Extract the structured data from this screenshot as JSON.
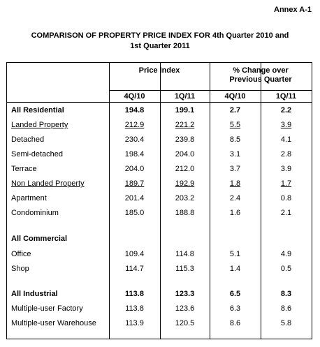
{
  "annex": "Annex A-1",
  "title_line1": "COMPARISON OF PROPERTY PRICE INDEX FOR 4th Quarter 2010 and",
  "title_line2": "1st Quarter 2011",
  "headers": {
    "price_index": "Price Index",
    "pct_change_line1": "% Change over",
    "pct_change_line2": "Previous Quarter",
    "q4_10": "4Q/10",
    "q1_11": "1Q/11"
  },
  "rows": [
    {
      "label": "All Residential",
      "pi_4q10": "194.8",
      "pi_1q11": "199.1",
      "pc_4q10": "2.7",
      "pc_1q11": "2.2"
    },
    {
      "label": "Landed Property",
      "pi_4q10": "212.9",
      "pi_1q11": "221.2",
      "pc_4q10": "5.5",
      "pc_1q11": "3.9"
    },
    {
      "label": "Detached",
      "pi_4q10": "230.4",
      "pi_1q11": "239.8",
      "pc_4q10": "8.5",
      "pc_1q11": "4.1"
    },
    {
      "label": "Semi-detached",
      "pi_4q10": "198.4",
      "pi_1q11": "204.0",
      "pc_4q10": "3.1",
      "pc_1q11": "2.8"
    },
    {
      "label": "Terrace",
      "pi_4q10": "204.0",
      "pi_1q11": "212.0",
      "pc_4q10": "3.7",
      "pc_1q11": "3.9"
    },
    {
      "label": "Non Landed Property",
      "pi_4q10": "189.7",
      "pi_1q11": "192.9",
      "pc_4q10": "1.8",
      "pc_1q11": "1.7"
    },
    {
      "label": "Apartment",
      "pi_4q10": "201.4",
      "pi_1q11": "203.2",
      "pc_4q10": "2.4",
      "pc_1q11": "0.8"
    },
    {
      "label": "Condominium",
      "pi_4q10": "185.0",
      "pi_1q11": "188.8",
      "pc_4q10": "1.6",
      "pc_1q11": "2.1"
    },
    {
      "label": "All Commercial",
      "pi_4q10": "",
      "pi_1q11": "",
      "pc_4q10": "",
      "pc_1q11": ""
    },
    {
      "label": "Office",
      "pi_4q10": "109.4",
      "pi_1q11": "114.8",
      "pc_4q10": "5.1",
      "pc_1q11": "4.9"
    },
    {
      "label": "Shop",
      "pi_4q10": "114.7",
      "pi_1q11": "115.3",
      "pc_4q10": "1.4",
      "pc_1q11": "0.5"
    },
    {
      "label": "All Industrial",
      "pi_4q10": "113.8",
      "pi_1q11": "123.3",
      "pc_4q10": "6.5",
      "pc_1q11": "8.3"
    },
    {
      "label": "Multiple-user Factory",
      "pi_4q10": "113.8",
      "pi_1q11": "123.6",
      "pc_4q10": "6.3",
      "pc_1q11": "8.6"
    },
    {
      "label": "Multiple-user Warehouse",
      "pi_4q10": "113.9",
      "pi_1q11": "120.5",
      "pc_4q10": "8.6",
      "pc_1q11": "5.8"
    }
  ]
}
